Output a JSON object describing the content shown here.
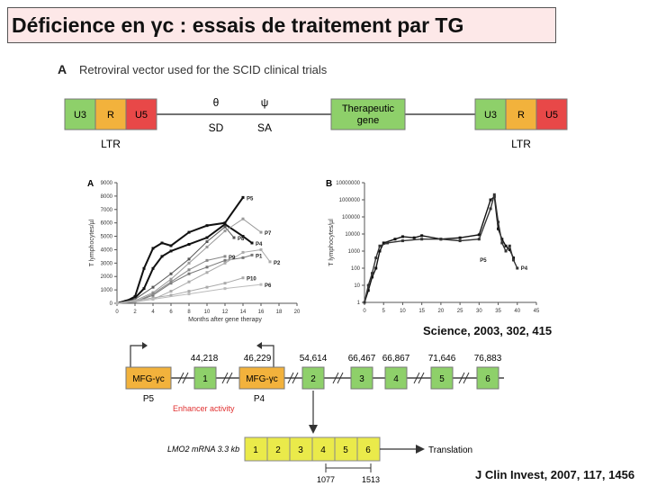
{
  "title": "Déficience en γc : essais de traitement par TG",
  "panel_a": {
    "letter": "A",
    "caption": "Retroviral vector used for the SCID clinical trials",
    "ltr_segments": [
      "U3",
      "R",
      "U5"
    ],
    "ltr_label": "LTR",
    "theta": "θ",
    "psi": "ψ",
    "sd": "SD",
    "sa": "SA",
    "therapeutic_gene": [
      "Therapeutic",
      "gene"
    ],
    "colors": {
      "green": "#8ed06a",
      "orange": "#f2b23c",
      "red": "#e84848"
    }
  },
  "chart_a": {
    "type": "line",
    "letter": "A",
    "xlabel": "Months after gene therapy",
    "ylabel": "T lymphocytes/µl",
    "yticks": [
      0,
      1000,
      2000,
      3000,
      4000,
      5000,
      6000,
      7000,
      8000,
      9000
    ],
    "xticks": [
      0,
      2,
      4,
      6,
      8,
      10,
      12,
      14,
      16,
      18,
      20
    ],
    "xlim": [
      0,
      20
    ],
    "ylim": [
      0,
      9000
    ],
    "series": [
      {
        "name": "P5",
        "color": "#111111",
        "width": 2,
        "x": [
          0,
          1,
          2,
          3,
          4,
          5,
          6,
          8,
          10,
          12,
          14
        ],
        "y": [
          0,
          150,
          500,
          2600,
          4100,
          4500,
          4300,
          5300,
          5800,
          6000,
          7900
        ]
      },
      {
        "name": "P4",
        "color": "#111111",
        "width": 2,
        "x": [
          0,
          2,
          3,
          4,
          5,
          6,
          8,
          10,
          12,
          14,
          15
        ],
        "y": [
          0,
          400,
          1100,
          2600,
          3500,
          3900,
          4400,
          4900,
          5900,
          5000,
          4500
        ]
      },
      {
        "name": "P8",
        "color": "#555555",
        "width": 1,
        "x": [
          0,
          2,
          4,
          6,
          8,
          10,
          12,
          13
        ],
        "y": [
          0,
          300,
          1200,
          2200,
          3300,
          4600,
          5700,
          4900
        ]
      },
      {
        "name": "P7",
        "color": "#999999",
        "width": 1,
        "x": [
          0,
          2,
          4,
          6,
          8,
          10,
          12,
          14,
          16
        ],
        "y": [
          0,
          200,
          800,
          1800,
          3000,
          4200,
          5400,
          6300,
          5300
        ]
      },
      {
        "name": "P1",
        "color": "#777777",
        "width": 1,
        "x": [
          0,
          2,
          4,
          6,
          8,
          10,
          12,
          14,
          15
        ],
        "y": [
          0,
          100,
          600,
          1500,
          2200,
          2700,
          3200,
          3400,
          3600
        ]
      },
      {
        "name": "P2",
        "color": "#aaaaaa",
        "width": 1,
        "x": [
          0,
          2,
          4,
          6,
          8,
          10,
          12,
          14,
          16,
          17
        ],
        "y": [
          0,
          100,
          300,
          900,
          1600,
          2300,
          3000,
          3800,
          4000,
          3100
        ]
      },
      {
        "name": "P9",
        "color": "#888888",
        "width": 1,
        "x": [
          0,
          2,
          4,
          6,
          8,
          10,
          12
        ],
        "y": [
          0,
          100,
          700,
          1600,
          2500,
          3200,
          3500
        ]
      },
      {
        "name": "P10",
        "color": "#aaaaaa",
        "width": 1,
        "x": [
          0,
          2,
          4,
          6,
          8,
          10,
          12,
          14
        ],
        "y": [
          0,
          200,
          400,
          600,
          900,
          1200,
          1500,
          1900
        ]
      },
      {
        "name": "P6",
        "color": "#bbbbbb",
        "width": 1,
        "x": [
          0,
          4,
          8,
          12,
          16
        ],
        "y": [
          0,
          300,
          700,
          1100,
          1400
        ]
      }
    ]
  },
  "chart_b": {
    "type": "line",
    "letter": "B",
    "ylabel": "T lymphocytes/µl",
    "ytick_labels": [
      "1",
      "10",
      "100",
      "1000",
      "10000",
      "100000",
      "1000000",
      "10000000"
    ],
    "yscale": "log",
    "xticks": [
      0,
      5,
      10,
      15,
      20,
      25,
      30,
      35,
      40,
      45
    ],
    "xlim": [
      0,
      45
    ],
    "series": [
      {
        "name": "P5",
        "color": "#111111",
        "x": [
          0,
          1,
          2,
          3,
          4,
          5,
          8,
          10,
          13,
          15,
          20,
          25,
          30,
          33,
          34,
          35,
          36,
          37,
          38,
          39
        ],
        "y": [
          1,
          5,
          30,
          100,
          1000,
          3000,
          5000,
          7000,
          6000,
          8000,
          5000,
          6000,
          9000,
          1000000,
          1500000,
          20000,
          5000,
          2000,
          1200,
          400
        ]
      },
      {
        "name": "P4",
        "color": "#333333",
        "x": [
          0,
          1,
          2,
          3,
          4,
          6,
          10,
          15,
          20,
          25,
          30,
          33,
          34,
          35,
          36,
          37,
          38,
          39,
          40
        ],
        "y": [
          1,
          10,
          50,
          400,
          2000,
          3000,
          4000,
          5000,
          5000,
          4000,
          5000,
          300000,
          2000000,
          50000,
          3000,
          1000,
          2000,
          300,
          100
        ]
      }
    ]
  },
  "ref_science": "Science, 2003, 302, 415",
  "panel_c": {
    "positions": [
      "44,218",
      "46,229",
      "54,614",
      "66,467",
      "66,867",
      "71,646",
      "76,883"
    ],
    "mfg_label": "MFG-γc",
    "exons": [
      "1",
      "2",
      "3",
      "4",
      "5",
      "6"
    ],
    "p5": "P5",
    "p4": "P4",
    "enhancer": "Enhancer activity",
    "mrna_label": "LMO2 mRNA 3.3 kb",
    "mrna_exons": [
      "1",
      "2",
      "3",
      "4",
      "5",
      "6"
    ],
    "translation": "Translation",
    "coords": [
      "1077",
      "1513"
    ]
  },
  "ref_jci": "J Clin Invest, 2007, 117, 1456"
}
